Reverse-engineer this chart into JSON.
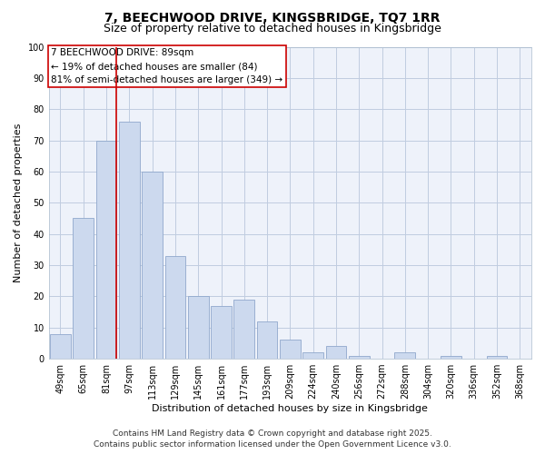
{
  "title": "7, BEECHWOOD DRIVE, KINGSBRIDGE, TQ7 1RR",
  "subtitle": "Size of property relative to detached houses in Kingsbridge",
  "xlabel": "Distribution of detached houses by size in Kingsbridge",
  "ylabel": "Number of detached properties",
  "categories": [
    "49sqm",
    "65sqm",
    "81sqm",
    "97sqm",
    "113sqm",
    "129sqm",
    "145sqm",
    "161sqm",
    "177sqm",
    "193sqm",
    "209sqm",
    "224sqm",
    "240sqm",
    "256sqm",
    "272sqm",
    "288sqm",
    "304sqm",
    "320sqm",
    "336sqm",
    "352sqm",
    "368sqm"
  ],
  "values": [
    8,
    45,
    70,
    76,
    60,
    33,
    20,
    17,
    19,
    12,
    6,
    2,
    4,
    1,
    0,
    2,
    0,
    1,
    0,
    1,
    0
  ],
  "bar_color": "#ccd9ee",
  "bar_edge_color": "#90a8cc",
  "highlight_color": "#cc0000",
  "vline_x_index": 2,
  "ylim": [
    0,
    100
  ],
  "yticks": [
    0,
    10,
    20,
    30,
    40,
    50,
    60,
    70,
    80,
    90,
    100
  ],
  "annotation_title": "7 BEECHWOOD DRIVE: 89sqm",
  "annotation_line1": "← 19% of detached houses are smaller (84)",
  "annotation_line2": "81% of semi-detached houses are larger (349) →",
  "annotation_box_color": "#ffffff",
  "annotation_box_edge": "#cc0000",
  "footer1": "Contains HM Land Registry data © Crown copyright and database right 2025.",
  "footer2": "Contains public sector information licensed under the Open Government Licence v3.0.",
  "bg_color": "#ffffff",
  "plot_bg_color": "#eef2fa",
  "grid_color": "#c0cce0",
  "title_fontsize": 10,
  "subtitle_fontsize": 9,
  "axis_label_fontsize": 8,
  "tick_fontsize": 7,
  "annotation_fontsize": 7.5,
  "footer_fontsize": 6.5
}
